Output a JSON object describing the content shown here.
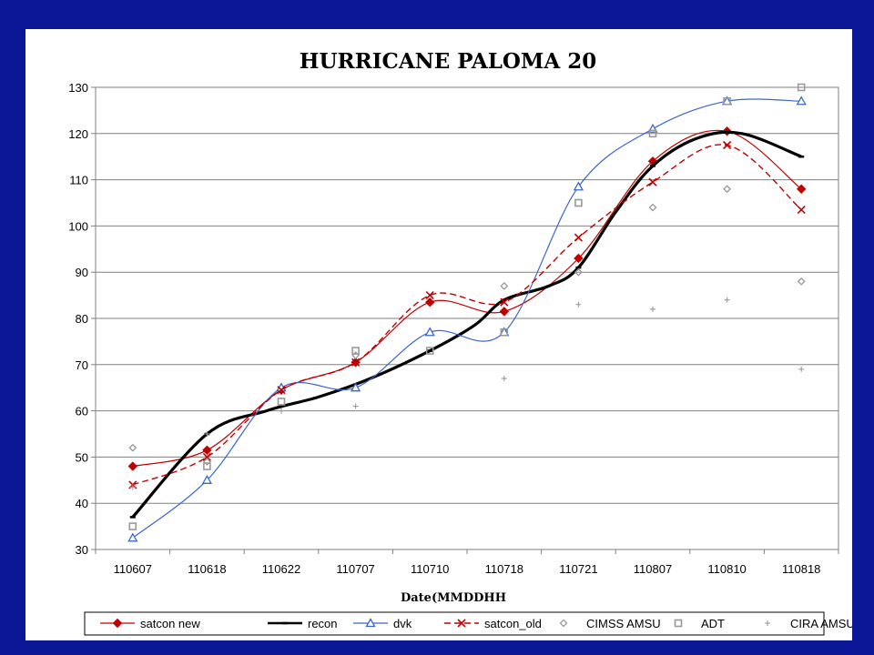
{
  "chart_data": {
    "type": "line",
    "title": "HURRICANE PALOMA 20",
    "xlabel": "Date(MMDDHH",
    "ylabel": "",
    "ylim": [
      30,
      130
    ],
    "yticks": [
      30,
      40,
      50,
      60,
      70,
      80,
      90,
      100,
      110,
      120,
      130
    ],
    "categories": [
      "110607",
      "110618",
      "110622",
      "110707",
      "110710",
      "110718",
      "110721",
      "110807",
      "110810",
      "110818"
    ],
    "grid": true,
    "legend_position": "bottom",
    "series": [
      {
        "name": "satcon new",
        "style": "smooth",
        "color": "#c00000",
        "marker": "diamond",
        "width": 1.2,
        "points": [
          [
            0,
            48
          ],
          [
            1,
            51.5
          ],
          [
            2,
            64.5
          ],
          [
            3,
            70.5
          ],
          [
            4,
            83.5
          ],
          [
            5,
            81.5
          ],
          [
            6,
            93
          ],
          [
            7,
            114
          ],
          [
            8,
            120.5
          ],
          [
            9,
            108
          ]
        ]
      },
      {
        "name": "recon",
        "style": "smooth",
        "color": "#000000",
        "marker": "dash",
        "width": 3.2,
        "points": [
          [
            0,
            37
          ],
          [
            1,
            55
          ],
          [
            1.8,
            60
          ],
          [
            2.5,
            63
          ],
          [
            3.2,
            67
          ],
          [
            4,
            73
          ],
          [
            4.6,
            78.5
          ],
          [
            5,
            84
          ],
          [
            5.6,
            87
          ],
          [
            6,
            91
          ],
          [
            6.5,
            103
          ],
          [
            7,
            113
          ],
          [
            7.6,
            119
          ],
          [
            8.2,
            120
          ],
          [
            9,
            115
          ]
        ]
      },
      {
        "name": "dvk",
        "style": "smooth",
        "color": "#3a66cc",
        "marker": "triangle",
        "width": 1.2,
        "points": [
          [
            0,
            32.5
          ],
          [
            1,
            45
          ],
          [
            2,
            65
          ],
          [
            3,
            65
          ],
          [
            4,
            77
          ],
          [
            5,
            77
          ],
          [
            6,
            108.5
          ],
          [
            7,
            121
          ],
          [
            8,
            127
          ],
          [
            9,
            127
          ]
        ]
      },
      {
        "name": "satcon_old",
        "style": "smooth",
        "color": "#c00000",
        "marker": "x",
        "width": 1.4,
        "dash": "7 4",
        "points": [
          [
            0,
            44
          ],
          [
            1,
            50
          ],
          [
            2,
            64.5
          ],
          [
            3,
            70.5
          ],
          [
            4,
            85
          ],
          [
            5,
            83.5
          ],
          [
            6,
            97.5
          ],
          [
            7,
            109.5
          ],
          [
            8,
            117.5
          ],
          [
            9,
            103.5
          ]
        ]
      },
      {
        "name": "CIMSS AMSU",
        "style": "points",
        "color": "#999999",
        "marker": "diamond-open",
        "points": [
          [
            0,
            52
          ],
          [
            1,
            49
          ],
          [
            3,
            72
          ],
          [
            5,
            87
          ],
          [
            6,
            90
          ],
          [
            7,
            104
          ],
          [
            8,
            108
          ],
          [
            9,
            88
          ]
        ]
      },
      {
        "name": "ADT",
        "style": "points",
        "color": "#999999",
        "marker": "square-open",
        "points": [
          [
            0,
            35
          ],
          [
            1,
            48
          ],
          [
            2,
            62
          ],
          [
            3,
            73
          ],
          [
            4,
            73
          ],
          [
            5,
            77
          ],
          [
            6,
            105
          ],
          [
            7,
            120
          ],
          [
            8,
            127
          ],
          [
            9,
            130
          ]
        ]
      },
      {
        "name": "CIRA AMSU",
        "style": "points",
        "color": "#999999",
        "marker": "plus",
        "points": [
          [
            0,
            43.5
          ],
          [
            1,
            55
          ],
          [
            2,
            60
          ],
          [
            3,
            61
          ],
          [
            5,
            67
          ],
          [
            6,
            83
          ],
          [
            7,
            82
          ],
          [
            8,
            84
          ],
          [
            9,
            69
          ]
        ]
      }
    ]
  }
}
